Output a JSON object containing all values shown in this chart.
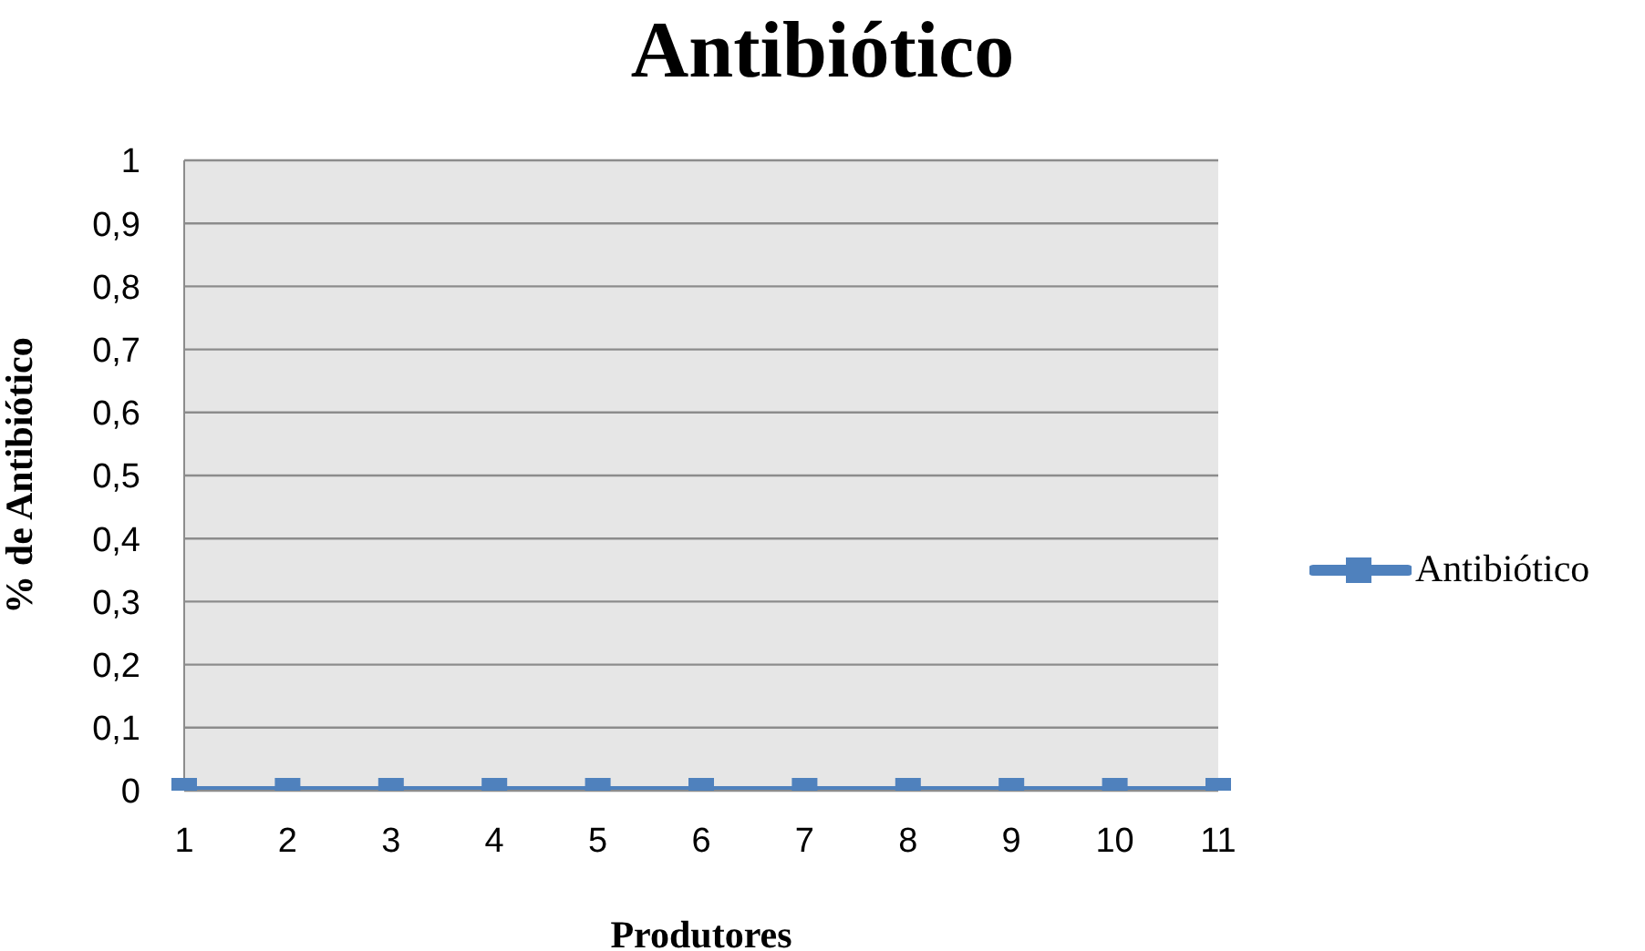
{
  "chart_data": {
    "type": "line",
    "title": "Antibiótico",
    "xlabel": "Produtores",
    "ylabel": "% de Antibiótico",
    "categories": [
      "1",
      "2",
      "3",
      "4",
      "5",
      "6",
      "7",
      "8",
      "9",
      "10",
      "11"
    ],
    "series": [
      {
        "name": "Antibiótico",
        "color": "#4f81bd",
        "values": [
          0,
          0,
          0,
          0,
          0,
          0,
          0,
          0,
          0,
          0,
          0
        ]
      }
    ],
    "ylim": [
      0,
      1
    ],
    "yticks": [
      0,
      {
        "value": 0.1,
        "label": "0,1"
      },
      {
        "value": 0.2,
        "label": "0,2"
      },
      {
        "value": 0.3,
        "label": "0,3"
      },
      {
        "value": 0.4,
        "label": "0,4"
      },
      {
        "value": 0.5,
        "label": "0,5"
      },
      {
        "value": 0.6,
        "label": "0,6"
      },
      {
        "value": 0.7,
        "label": "0,7"
      },
      {
        "value": 0.8,
        "label": "0,8"
      },
      {
        "value": 0.9,
        "label": "0,9"
      },
      1
    ],
    "grid": "y",
    "legend": "right",
    "marker": "square",
    "line_style": "solid"
  }
}
